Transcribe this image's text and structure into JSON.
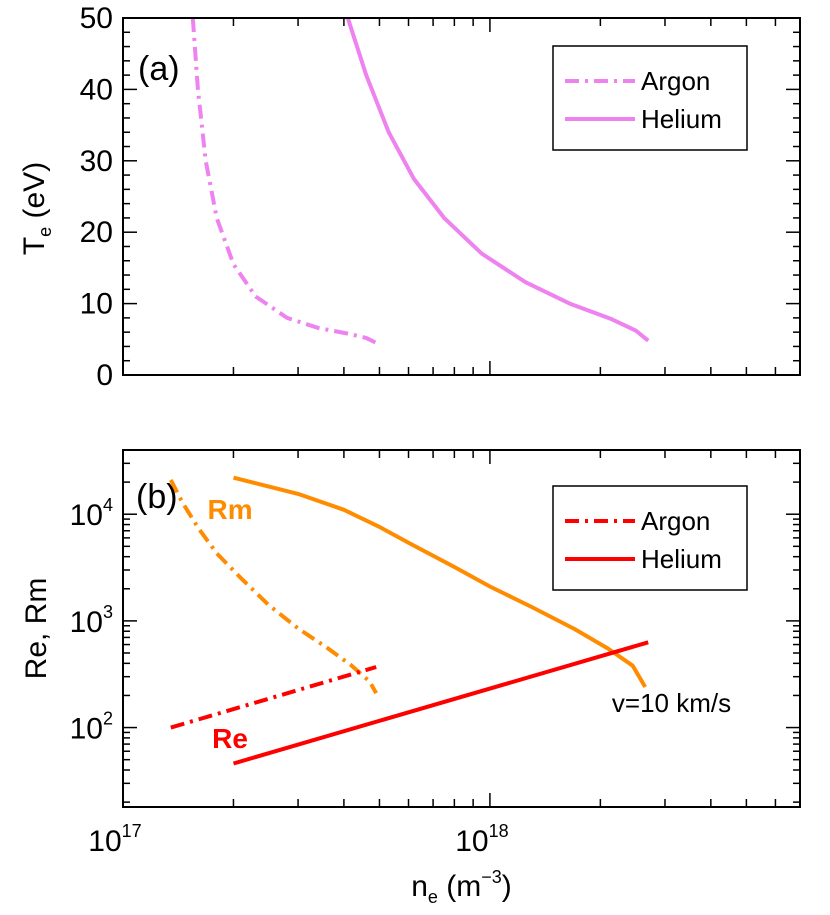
{
  "chart_data": [
    {
      "type": "line",
      "panel_label": "(a)",
      "xscale": "log",
      "xlim": [
        1e+17,
        7e+18
      ],
      "ylim": [
        0,
        50
      ],
      "yticks": [
        0,
        10,
        20,
        30,
        40,
        50
      ],
      "ylabel_main": "T",
      "ylabel_sub": "e",
      "ylabel_unit": " (eV)",
      "legend_position": "top-right",
      "series": [
        {
          "name": "Argon",
          "style": "dash-dot",
          "color": "#EE82EE",
          "x": [
            1.55e+17,
            1.6e+17,
            1.68e+17,
            1.8e+17,
            2e+17,
            2.3e+17,
            2.8e+17,
            3.4e+17,
            4.1e+17,
            4.6e+17,
            4.9e+17
          ],
          "y": [
            50,
            40,
            30,
            22,
            15.5,
            11,
            8,
            6.6,
            5.8,
            5.2,
            4.5
          ]
        },
        {
          "name": "Helium",
          "style": "solid",
          "color": "#EE82EE",
          "x": [
            4.1e+17,
            4.6e+17,
            5.3e+17,
            6.2e+17,
            7.5e+17,
            9.5e+17,
            1.25e+18,
            1.65e+18,
            2.15e+18,
            2.5e+18,
            2.7e+18
          ],
          "y": [
            50,
            42,
            34,
            27.5,
            22,
            17,
            13,
            10,
            7.8,
            6.2,
            4.8
          ]
        }
      ]
    },
    {
      "type": "line",
      "panel_label": "(b)",
      "xscale": "log",
      "yscale": "log",
      "xlim": [
        1e+17,
        7e+18
      ],
      "ylim": [
        18,
        40000
      ],
      "yticks": [
        {
          "value": 100,
          "base": "10",
          "exp": "2"
        },
        {
          "value": 1000,
          "base": "10",
          "exp": "3"
        },
        {
          "value": 10000,
          "base": "10",
          "exp": "4"
        }
      ],
      "ylabel": "Re, Rm",
      "xlabel_main": "n",
      "xlabel_sub": "e",
      "xlabel_unit_open": " (m",
      "xlabel_unit_exp": "−3",
      "xlabel_unit_close": ")",
      "xticks": [
        {
          "value": 1e+17,
          "base": "10",
          "exp": "17"
        },
        {
          "value": 1e+18,
          "base": "10",
          "exp": "18"
        }
      ],
      "legend_position": "top-right",
      "legend": [
        {
          "name": "Argon",
          "style": "dash-dot",
          "color": "#FF0000"
        },
        {
          "name": "Helium",
          "style": "solid",
          "color": "#FF0000"
        }
      ],
      "series": [
        {
          "name": "Rm (Argon)",
          "style": "dash-dot",
          "color": "#FF8C00",
          "x": [
            1.35e+17,
            1.45e+17,
            1.6e+17,
            1.8e+17,
            2.1e+17,
            2.5e+17,
            3e+17,
            3.6e+17,
            4.2e+17,
            4.7e+17,
            4.9e+17
          ],
          "y": [
            21000,
            13000,
            7500,
            4300,
            2500,
            1400,
            850,
            560,
            380,
            270,
            210
          ]
        },
        {
          "name": "Rm (Helium)",
          "style": "solid",
          "color": "#FF8C00",
          "x": [
            2e+17,
            3e+17,
            4e+17,
            5e+17,
            6e+17,
            8e+17,
            1e+18,
            1.3e+18,
            1.7e+18,
            2.1e+18,
            2.45e+18,
            2.65e+18
          ],
          "y": [
            22000,
            15500,
            11000,
            7600,
            5400,
            3200,
            2100,
            1350,
            840,
            550,
            380,
            240
          ]
        },
        {
          "name": "Re (Argon)",
          "style": "dash-dot",
          "color": "#FF0000",
          "x": [
            1.35e+17,
            4.9e+17
          ],
          "y": [
            100,
            370
          ]
        },
        {
          "name": "Re (Helium)",
          "style": "solid",
          "color": "#FF0000",
          "x": [
            2e+17,
            2.7e+18
          ],
          "y": [
            46,
            630
          ]
        }
      ],
      "annotations": [
        {
          "text": "Rm",
          "color": "#FF8C00",
          "bold": true,
          "x": 1.7e+17,
          "y": 9000
        },
        {
          "text": "Re",
          "color": "#FF0000",
          "bold": true,
          "x": 1.75e+17,
          "y": 64
        },
        {
          "text": "v=10 km/s",
          "color": "#000000",
          "bold": false,
          "x": 2.15e+18,
          "y": 140
        }
      ]
    }
  ]
}
